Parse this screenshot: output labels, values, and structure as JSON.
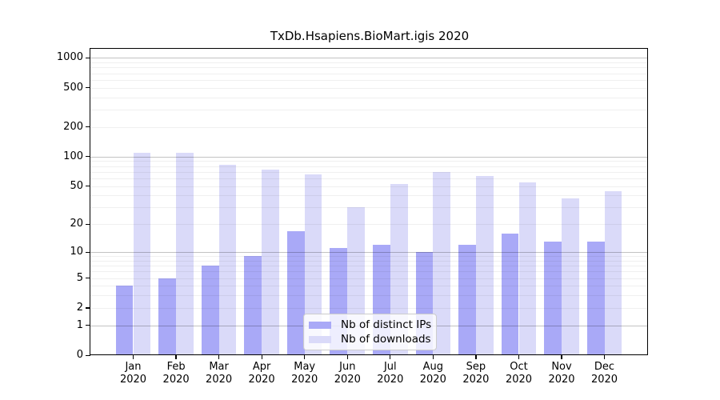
{
  "chart_data": {
    "type": "bar",
    "title": "TxDb.Hsapiens.BioMart.igis 2020",
    "scale": "log1p",
    "categories": [
      "Jan 2020",
      "Feb 2020",
      "Mar 2020",
      "Apr 2020",
      "May 2020",
      "Jun 2020",
      "Jul 2020",
      "Aug 2020",
      "Sep 2020",
      "Oct 2020",
      "Nov 2020",
      "Dec 2020"
    ],
    "series": [
      {
        "name": "Nb of distinct IPs",
        "color": "#a9a9f7",
        "values": [
          4,
          5,
          7,
          9,
          17,
          11,
          12,
          10,
          12,
          16,
          13,
          13
        ]
      },
      {
        "name": "Nb of downloads",
        "color": "#dadaf9",
        "values": [
          110,
          110,
          82,
          74,
          66,
          30,
          52,
          70,
          63,
          55,
          37,
          44
        ]
      }
    ],
    "xlabel": "",
    "ylabel": "",
    "y_ticks": [
      0,
      1,
      2,
      5,
      10,
      20,
      50,
      100,
      200,
      500,
      1000
    ],
    "y_major_grid": [
      1,
      10,
      100,
      1000
    ],
    "y_minor_grid": [
      2,
      3,
      4,
      5,
      6,
      7,
      8,
      9,
      20,
      30,
      40,
      50,
      60,
      70,
      80,
      90,
      200,
      300,
      400,
      500,
      600,
      700,
      800,
      900
    ],
    "ylim": [
      0,
      1235
    ],
    "grid": true,
    "legend_position": "inside-bottom-center"
  },
  "colors": {
    "background": "#ffffff",
    "axis": "#000000",
    "bar_distinct_ips": "#a9a9f7",
    "bar_downloads": "#dadaf9",
    "major_grid": "rgba(0,0,0,0.24)",
    "minor_grid": "rgba(0,0,0,0.06)",
    "legend_bg": "rgba(255,255,255,0.8)",
    "legend_border": "#cccccc"
  }
}
